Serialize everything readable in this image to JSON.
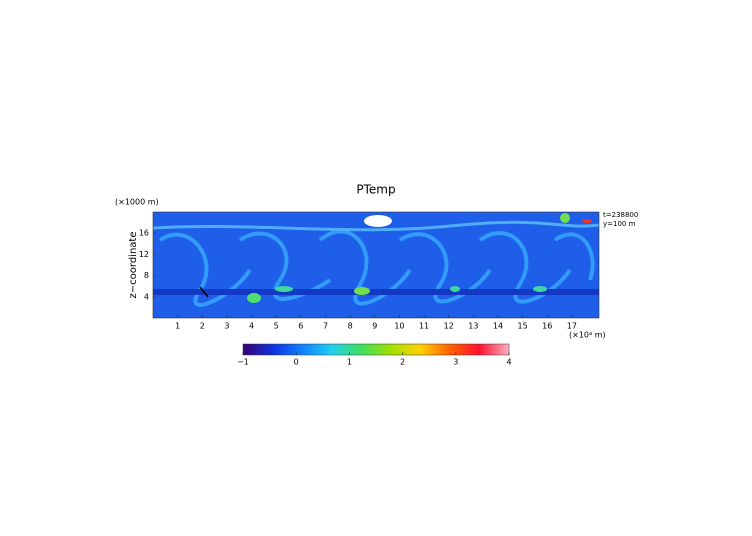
{
  "chart_data": {
    "type": "heatmap",
    "title": "PTemp",
    "x_unit": "(×10⁴ m)",
    "y_unit": "(×1000 m)",
    "ylabel": "z−coordinate",
    "annotations": [
      "t=238800",
      "y=100 m"
    ],
    "xlim": [
      0,
      18.1
    ],
    "xticks": [
      1,
      2,
      3,
      4,
      5,
      6,
      7,
      8,
      9,
      10,
      11,
      12,
      13,
      14,
      15,
      16,
      17
    ],
    "ylim": [
      0,
      20
    ],
    "yticks": [
      4,
      8,
      12,
      16
    ],
    "colorbar": {
      "lim": [
        -1,
        4
      ],
      "ticks": [
        {
          "value": -1,
          "label": "−1"
        },
        0,
        1,
        2,
        3,
        4
      ],
      "colors": [
        "#3a0070",
        "#1030e0",
        "#1080ff",
        "#20d0f0",
        "#40e060",
        "#a0e000",
        "#ffd000",
        "#ff6000",
        "#ff1030",
        "#ffb0c0"
      ]
    }
  }
}
